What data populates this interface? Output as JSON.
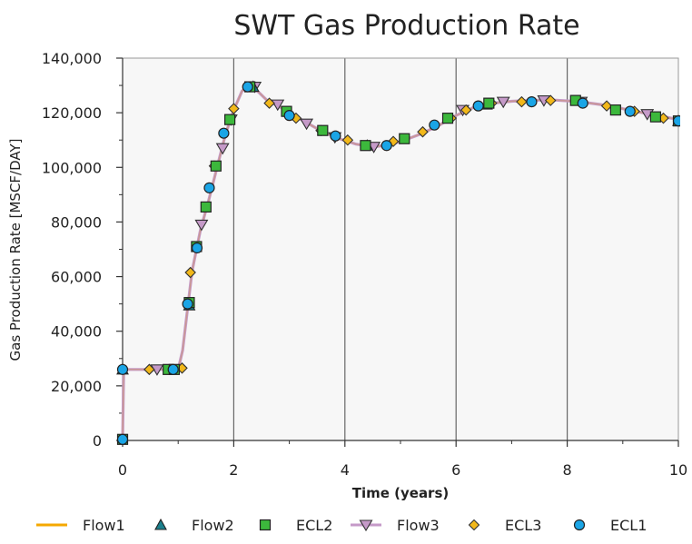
{
  "chart_data": {
    "type": "line",
    "title": "SWT Gas Production Rate",
    "xlabel": "Time (years)",
    "ylabel": "Gas Production Rate [MSCF/DAY]",
    "xlim": [
      0,
      10
    ],
    "ylim": [
      0,
      140000
    ],
    "x_ticks": [
      "0",
      "2",
      "4",
      "6",
      "8",
      "10"
    ],
    "y_ticks": [
      "0",
      "20,000",
      "40,000",
      "60,000",
      "80,000",
      "100,000",
      "120,000",
      "140,000"
    ],
    "grid": "vertical major lines",
    "legend_position": "bottom",
    "colors": {
      "flow1": "#f5a800",
      "flow2": "#1a7f8c",
      "ecl2": "#3cb83c",
      "flow3": "#c59ac8",
      "ecl3": "#f2b81a",
      "ecl1": "#1aa5e6",
      "plot_bg": "#f7f7f7",
      "grid": "#666666"
    },
    "curve": {
      "x": [
        0,
        0.02,
        0.5,
        1.0,
        1.08,
        1.15,
        1.25,
        1.4,
        1.55,
        1.7,
        1.85,
        2.0,
        2.15,
        2.3,
        2.45,
        2.6,
        2.8,
        3.0,
        3.3,
        3.6,
        3.9,
        4.2,
        4.5,
        4.8,
        5.1,
        5.4,
        5.7,
        6.0,
        6.3,
        6.6,
        7.0,
        7.4,
        7.8,
        8.2,
        8.6,
        9.0,
        9.4,
        9.8,
        10.0
      ],
      "y": [
        500,
        26000,
        26000,
        26000,
        33000,
        45000,
        62000,
        77000,
        88000,
        100000,
        112000,
        121000,
        128000,
        129500,
        127500,
        124500,
        122500,
        120000,
        116500,
        113000,
        110500,
        108500,
        107500,
        108200,
        110200,
        112500,
        115500,
        119000,
        121800,
        123400,
        124200,
        124600,
        124600,
        124100,
        123000,
        121500,
        119800,
        118300,
        117500
      ]
    },
    "series": [
      {
        "name": "Flow1",
        "marker": "line",
        "x": [],
        "y": []
      },
      {
        "name": "Flow2",
        "marker": "triangle-up",
        "x": [
          0.0,
          1.2,
          2.35,
          4.4,
          6.55,
          10.0
        ],
        "y": [
          26000,
          49500,
          129500,
          108000,
          123000,
          117000
        ]
      },
      {
        "name": "ECL2",
        "marker": "square",
        "x": [
          0.0,
          0.82,
          0.93,
          1.2,
          1.33,
          1.5,
          1.68,
          1.93,
          2.29,
          2.95,
          3.6,
          4.37,
          5.07,
          5.85,
          6.59,
          8.15,
          8.87,
          9.59,
          10.0
        ],
        "y": [
          400,
          26000,
          26000,
          50500,
          71000,
          85500,
          100500,
          117500,
          129500,
          120500,
          113500,
          108000,
          110500,
          118000,
          123500,
          124500,
          121000,
          118500,
          117000
        ]
      },
      {
        "name": "Flow3",
        "marker": "triangle-down",
        "x": [
          0.62,
          1.42,
          1.8,
          1.95,
          2.38,
          2.79,
          3.31,
          3.82,
          4.52,
          6.12,
          6.85,
          7.58,
          8.25,
          9.44
        ],
        "y": [
          26000,
          79000,
          107000,
          117500,
          129500,
          123000,
          116000,
          111000,
          107500,
          121000,
          124000,
          124500,
          124000,
          119500
        ]
      },
      {
        "name": "ECL3",
        "marker": "diamond",
        "x": [
          0.48,
          1.07,
          1.22,
          1.65,
          2.0,
          2.64,
          3.12,
          3.57,
          4.05,
          4.87,
          5.4,
          5.91,
          6.18,
          6.64,
          7.18,
          7.7,
          8.23,
          8.71,
          9.21,
          9.73
        ],
        "y": [
          26000,
          26500,
          61500,
          100500,
          121500,
          123500,
          118000,
          113500,
          110000,
          109500,
          113000,
          118000,
          121000,
          123500,
          124000,
          124500,
          124000,
          122500,
          120500,
          118000
        ]
      },
      {
        "name": "ECL1",
        "marker": "circle",
        "x": [
          0.0,
          0.0,
          0.91,
          1.17,
          1.34,
          1.56,
          1.82,
          2.25,
          3.0,
          3.83,
          4.75,
          5.61,
          6.4,
          7.36,
          8.28,
          9.13,
          10.0
        ],
        "y": [
          400,
          26000,
          26000,
          50000,
          70500,
          92500,
          112500,
          129500,
          119000,
          111500,
          108000,
          115500,
          122500,
          124000,
          123500,
          120500,
          117000
        ]
      }
    ]
  }
}
